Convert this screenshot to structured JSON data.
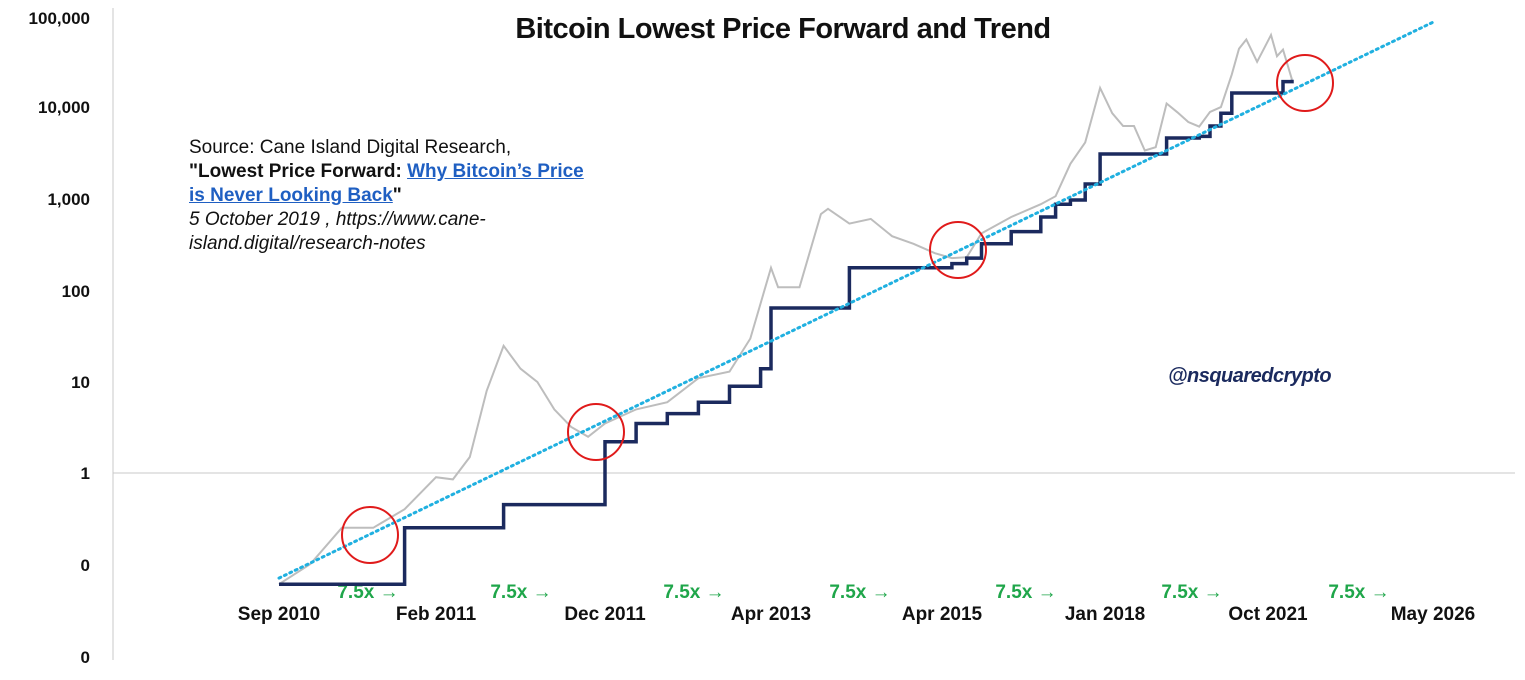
{
  "chart_data": {
    "type": "line",
    "title": "Bitcoin Lowest Price Forward and Trend",
    "yscale": "log",
    "y_tick_labels": [
      "100,000",
      "10,000",
      "1,000",
      "100",
      "10",
      "1",
      "0",
      "0"
    ],
    "x_tick_labels": [
      "Sep 2010",
      "Feb 2011",
      "Dec 2011",
      "Apr 2013",
      "Apr 2015",
      "Jan 2018",
      "Oct 2021",
      "May 2026"
    ],
    "multiplier_labels": [
      "7.5x →",
      "7.5x →",
      "7.5x →",
      "7.5x →",
      "7.5x →",
      "7.5x →",
      "7.5x →"
    ],
    "series": [
      {
        "color": "#bdbdbd",
        "x": [
          "2010-09",
          "2010-10",
          "2010-11",
          "2010-12",
          "2011-01",
          "2011-02",
          "2011-03",
          "2011-04",
          "2011-05",
          "2011-06",
          "2011-07",
          "2011-08",
          "2011-09",
          "2011-10",
          "2011-11",
          "2011-12",
          "2012-03",
          "2012-06",
          "2012-09",
          "2012-12",
          "2013-02",
          "2013-04",
          "2013-05",
          "2013-08",
          "2013-11",
          "2013-12",
          "2014-03",
          "2014-06",
          "2014-09",
          "2014-12",
          "2015-03",
          "2015-06",
          "2015-09",
          "2015-12",
          "2016-06",
          "2016-12",
          "2017-03",
          "2017-06",
          "2017-09",
          "2017-12",
          "2018-03",
          "2018-06",
          "2018-09",
          "2018-12",
          "2019-03",
          "2019-06",
          "2019-09",
          "2019-12",
          "2020-03",
          "2020-06",
          "2020-09",
          "2020-12",
          "2021-02",
          "2021-04",
          "2021-07",
          "2021-09",
          "2021-11",
          "2022-01",
          "2022-03",
          "2022-06"
        ],
        "values": [
          0.06,
          0.1,
          0.25,
          0.25,
          0.4,
          0.9,
          0.85,
          1.5,
          8,
          25,
          14,
          10,
          5,
          3.2,
          2.5,
          3.5,
          5,
          6,
          11,
          13,
          30,
          180,
          110,
          110,
          700,
          800,
          550,
          620,
          400,
          330,
          260,
          230,
          235,
          430,
          650,
          900,
          1100,
          2500,
          4300,
          17000,
          9000,
          6500,
          6500,
          3500,
          3800,
          11500,
          9200,
          7200,
          6400,
          9300,
          10500,
          24000,
          46000,
          58000,
          33000,
          47000,
          65000,
          38000,
          45000,
          21000
        ]
      },
      {
        "color": "#1b2a5e",
        "x": [
          "2010-09",
          "2011-01",
          "2011-06",
          "2011-12",
          "2012-03",
          "2012-06",
          "2012-09",
          "2012-12",
          "2013-03",
          "2013-04",
          "2013-11",
          "2014-03",
          "2015-01",
          "2015-06",
          "2015-09",
          "2015-12",
          "2016-06",
          "2016-12",
          "2017-03",
          "2017-06",
          "2017-09",
          "2017-12",
          "2018-12",
          "2019-06",
          "2019-09",
          "2020-03",
          "2020-06",
          "2020-09",
          "2020-12",
          "2021-03",
          "2021-07",
          "2021-12",
          "2022-03",
          "2022-06"
        ],
        "values": [
          0.06,
          0.25,
          0.45,
          2.2,
          3.5,
          4.5,
          6,
          9,
          14,
          65,
          65,
          180,
          180,
          200,
          230,
          330,
          450,
          650,
          900,
          1000,
          1500,
          3200,
          3200,
          4800,
          4800,
          5000,
          6500,
          9000,
          15000,
          15000,
          15000,
          15000,
          20000,
          21000
        ]
      },
      {
        "color": "#20b0e0",
        "x": [
          "2010-09",
          "2026-05"
        ],
        "values": [
          0.07,
          90000
        ]
      }
    ],
    "highlight_circles": [
      "Jan 2011",
      "Dec 2011",
      "Apr 2015",
      "Jul 2021"
    ],
    "grid": false
  },
  "source_note": {
    "line1": "Source: Cane Island Digital Research,",
    "quote_open": "\"Lowest Price Forward: ",
    "link1": "Why Bitcoin’s Price",
    "link2": "is Never Looking Back",
    "quote_close": "\"",
    "line4": "5 October 2019 , https://www.cane-",
    "line5": "island.digital/research-notes"
  },
  "handle": "@nsquaredcrypto",
  "colors": {
    "price": "#bdbdbd",
    "lowest_price_forward": "#1b2a5e",
    "trend": "#20b0e0",
    "circle": "#e01b1b",
    "multiplier": "#1fa64a"
  }
}
